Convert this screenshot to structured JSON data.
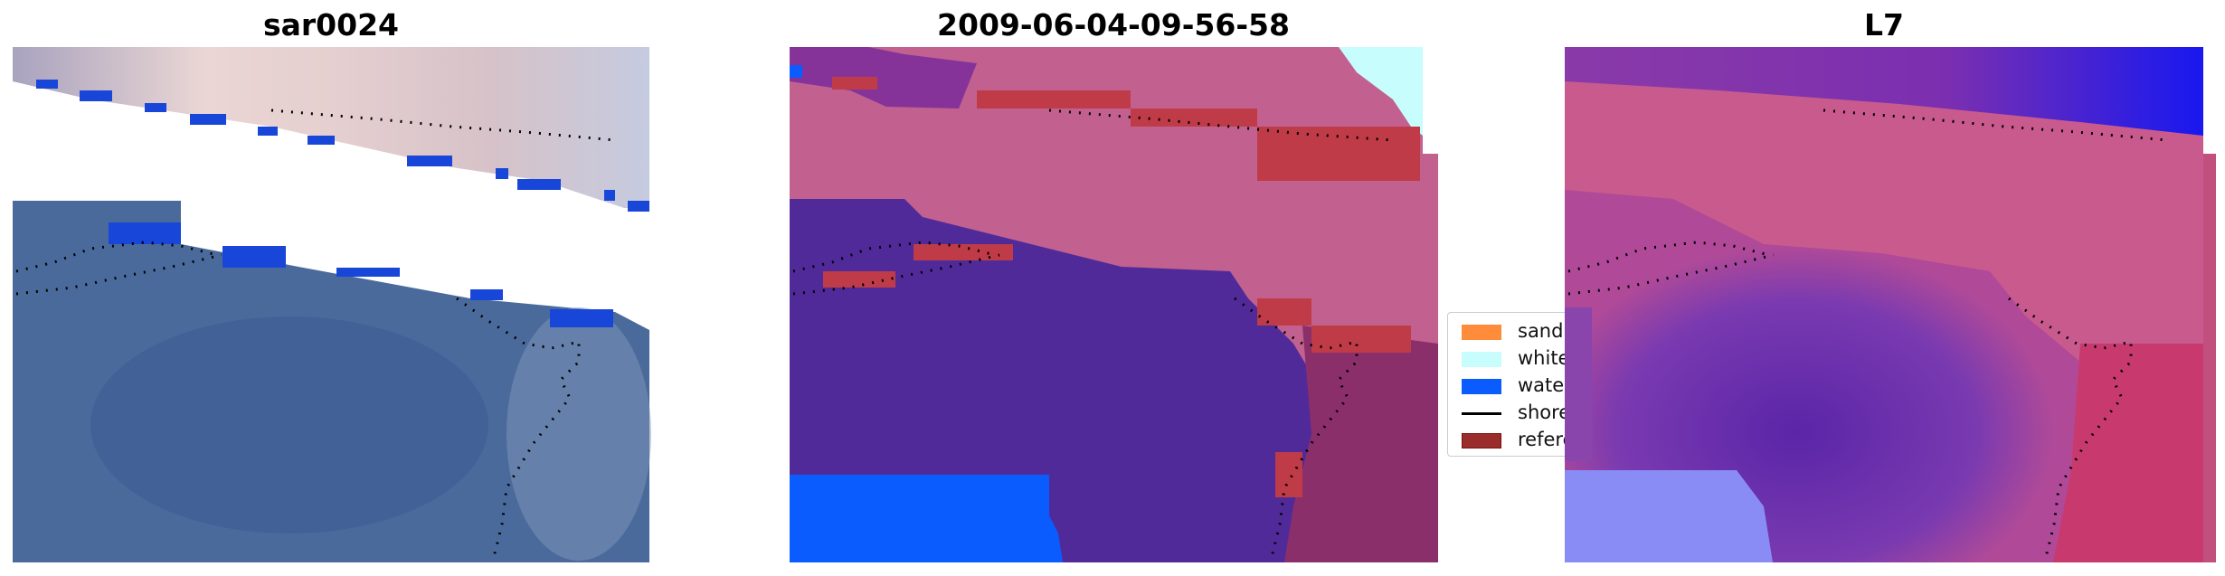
{
  "panels": [
    {
      "title": "sar0024"
    },
    {
      "title": "2009-06-04-09-56-58"
    },
    {
      "title": "L7"
    }
  ],
  "legend": {
    "items": [
      {
        "label": "sand",
        "color": "#ff8c3a",
        "kind": "patch"
      },
      {
        "label": "whitewater",
        "color": "#c8fdfd",
        "kind": "patch"
      },
      {
        "label": "water",
        "color": "#0a5cff",
        "kind": "patch"
      },
      {
        "label": "shoreline",
        "color": "#000000",
        "kind": "line"
      },
      {
        "label": "reference shoreline",
        "color": "#9b2c2c",
        "kind": "patch"
      }
    ]
  },
  "colors": {
    "land_class": "#c2618f",
    "water_class": "#512a9a",
    "ocean_blue": "#0a5cff"
  }
}
